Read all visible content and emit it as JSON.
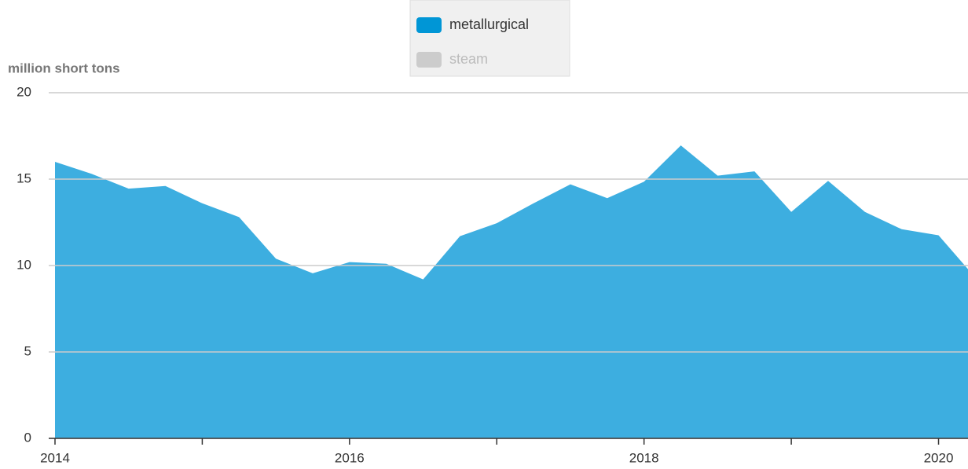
{
  "chart_data": {
    "type": "area",
    "ylabel": "million short tons",
    "x": [
      2014,
      2014.25,
      2014.5,
      2014.75,
      2015,
      2015.25,
      2015.5,
      2015.75,
      2016,
      2016.25,
      2016.5,
      2016.75,
      2017,
      2017.25,
      2017.5,
      2017.75,
      2018,
      2018.25,
      2018.5,
      2018.75,
      2019,
      2019.25,
      2019.5,
      2019.75,
      2020,
      2020.25
    ],
    "series": [
      {
        "name": "metallurgical",
        "color": "#3daee0",
        "legend_color": "#0096d6",
        "visible": true,
        "values": [
          16.0,
          15.3,
          14.45,
          14.6,
          13.6,
          12.8,
          10.4,
          9.55,
          10.2,
          10.1,
          9.2,
          11.7,
          12.45,
          13.6,
          14.7,
          13.9,
          14.85,
          16.95,
          15.2,
          15.45,
          13.1,
          14.9,
          13.1,
          12.1,
          11.75,
          9.3
        ]
      },
      {
        "name": "steam",
        "color": "#cccccc",
        "legend_color": "#cccccc",
        "visible": false
      }
    ],
    "xlim": [
      2014,
      2020.2
    ],
    "xticks": [
      2014,
      2016,
      2018,
      2020
    ],
    "xminorticks": [
      2015,
      2017,
      2019
    ],
    "ylim": [
      0,
      20
    ],
    "yticks": [
      0,
      5,
      10,
      15,
      20
    ],
    "grid": true,
    "legend": "top"
  }
}
